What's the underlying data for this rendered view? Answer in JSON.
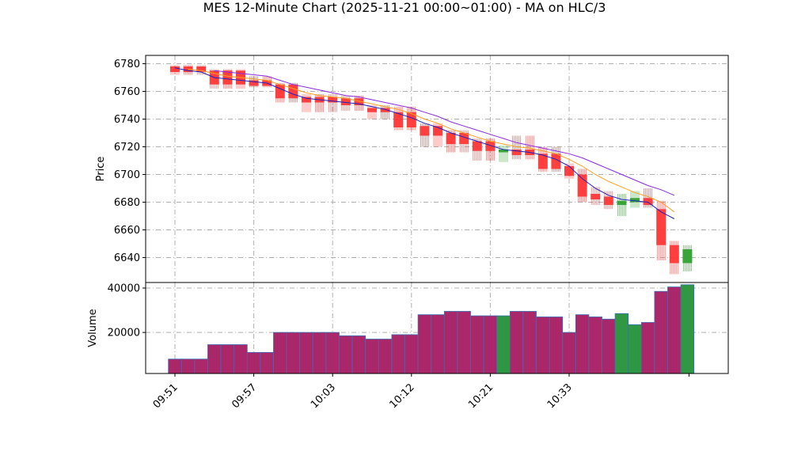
{
  "chart_data": {
    "type": "candlestick",
    "title": "MES 12-Minute Chart (2025-11-21 00:00~01:00) - MA on HLC/3",
    "price_panel": {
      "ylabel": "Price",
      "yticks": [
        6640,
        6660,
        6680,
        6700,
        6720,
        6740,
        6760,
        6780
      ],
      "ylim": [
        6622,
        6786
      ],
      "grid": true
    },
    "volume_panel": {
      "ylabel": "Volume",
      "yticks": [
        20000,
        40000
      ],
      "ylim": [
        1500,
        42500
      ],
      "grid": true
    },
    "x_tick_labels": [
      "09:51",
      "09:57",
      "10:03",
      "10:12",
      "10:21",
      "10:33"
    ],
    "x_tick_bar_index": [
      0,
      6,
      12,
      18,
      24,
      30
    ],
    "colors": {
      "up": "#2ca02c",
      "down": "#ff3333",
      "ma_fast": "#1f1fbf",
      "ma_mid": "#ff9f1c",
      "ma_slow": "#8a2be2",
      "volume_edge": "#3c6fb4",
      "grid": "#b0b0b0"
    },
    "bars": [
      {
        "o": 6778,
        "h": 6779,
        "l": 6772,
        "c": 6774,
        "v": 8000
      },
      {
        "o": 6778,
        "h": 6779,
        "l": 6772,
        "c": 6774,
        "v": 8000
      },
      {
        "o": 6778,
        "h": 6779,
        "l": 6772,
        "c": 6774,
        "v": 8000
      },
      {
        "o": 6775,
        "h": 6776,
        "l": 6762,
        "c": 6765,
        "v": 14500
      },
      {
        "o": 6775,
        "h": 6776,
        "l": 6762,
        "c": 6765,
        "v": 14500
      },
      {
        "o": 6775,
        "h": 6776,
        "l": 6762,
        "c": 6765,
        "v": 14500
      },
      {
        "o": 6768,
        "h": 6771,
        "l": 6763,
        "c": 6764,
        "v": 11000
      },
      {
        "o": 6768,
        "h": 6771,
        "l": 6763,
        "c": 6764,
        "v": 11000
      },
      {
        "o": 6765,
        "h": 6766,
        "l": 6752,
        "c": 6755,
        "v": 20000
      },
      {
        "o": 6765,
        "h": 6766,
        "l": 6752,
        "c": 6755,
        "v": 20000
      },
      {
        "o": 6756,
        "h": 6758,
        "l": 6745,
        "c": 6752,
        "v": 20000
      },
      {
        "o": 6756,
        "h": 6758,
        "l": 6745,
        "c": 6752,
        "v": 20000
      },
      {
        "o": 6756,
        "h": 6758,
        "l": 6745,
        "c": 6752,
        "v": 20000
      },
      {
        "o": 6755,
        "h": 6757,
        "l": 6746,
        "c": 6750,
        "v": 18500
      },
      {
        "o": 6755,
        "h": 6757,
        "l": 6746,
        "c": 6750,
        "v": 18500
      },
      {
        "o": 6748,
        "h": 6750,
        "l": 6740,
        "c": 6745,
        "v": 17000
      },
      {
        "o": 6748,
        "h": 6750,
        "l": 6740,
        "c": 6745,
        "v": 17000
      },
      {
        "o": 6745,
        "h": 6749,
        "l": 6732,
        "c": 6734,
        "v": 19000
      },
      {
        "o": 6745,
        "h": 6749,
        "l": 6732,
        "c": 6734,
        "v": 19000
      },
      {
        "o": 6735,
        "h": 6737,
        "l": 6720,
        "c": 6728,
        "v": 28000
      },
      {
        "o": 6735,
        "h": 6737,
        "l": 6720,
        "c": 6728,
        "v": 28000
      },
      {
        "o": 6730,
        "h": 6732,
        "l": 6716,
        "c": 6722,
        "v": 29500
      },
      {
        "o": 6730,
        "h": 6732,
        "l": 6716,
        "c": 6722,
        "v": 29500
      },
      {
        "o": 6724,
        "h": 6726,
        "l": 6710,
        "c": 6717,
        "v": 27500
      },
      {
        "o": 6724,
        "h": 6726,
        "l": 6710,
        "c": 6717,
        "v": 27500
      },
      {
        "o": 6716,
        "h": 6721,
        "l": 6709,
        "c": 6718,
        "v": 27500
      },
      {
        "o": 6718,
        "h": 6728,
        "l": 6711,
        "c": 6714,
        "v": 29500
      },
      {
        "o": 6718,
        "h": 6728,
        "l": 6711,
        "c": 6714,
        "v": 29500
      },
      {
        "o": 6715,
        "h": 6720,
        "l": 6702,
        "c": 6704,
        "v": 27000
      },
      {
        "o": 6715,
        "h": 6720,
        "l": 6702,
        "c": 6704,
        "v": 27000
      },
      {
        "o": 6706,
        "h": 6708,
        "l": 6697,
        "c": 6699,
        "v": 20000
      },
      {
        "o": 6700,
        "h": 6704,
        "l": 6680,
        "c": 6684,
        "v": 28000
      },
      {
        "o": 6686,
        "h": 6691,
        "l": 6678,
        "c": 6682,
        "v": 27000
      },
      {
        "o": 6684,
        "h": 6688,
        "l": 6675,
        "c": 6678,
        "v": 26000
      },
      {
        "o": 6678,
        "h": 6686,
        "l": 6670,
        "c": 6681,
        "v": 28500
      },
      {
        "o": 6680,
        "h": 6688,
        "l": 6676,
        "c": 6683,
        "v": 23500
      },
      {
        "o": 6683,
        "h": 6690,
        "l": 6676,
        "c": 6678,
        "v": 24500
      },
      {
        "o": 6675,
        "h": 6681,
        "l": 6638,
        "c": 6649,
        "v": 38500
      },
      {
        "o": 6649,
        "h": 6652,
        "l": 6628,
        "c": 6636,
        "v": 40500
      },
      {
        "o": 6636,
        "h": 6649,
        "l": 6630,
        "c": 6646,
        "v": 41500
      }
    ],
    "ma_fast": [
      6777,
      6775,
      6774,
      6770,
      6769,
      6768,
      6767,
      6766,
      6762,
      6758,
      6755,
      6754,
      6753,
      6752,
      6751,
      6749,
      6747,
      6744,
      6741,
      6737,
      6734,
      6730,
      6727,
      6724,
      6721,
      6718,
      6717,
      6716,
      6714,
      6711,
      6706,
      6697,
      6690,
      6685,
      6682,
      6681,
      6680,
      6673,
      null,
      null
    ],
    "ma_mid": [
      null,
      6776,
      6775,
      6773,
      6771,
      6770,
      6769,
      6768,
      6765,
      6762,
      6759,
      6757,
      6756,
      6755,
      6753,
      6751,
      6749,
      6747,
      6744,
      6740,
      6737,
      6733,
      6730,
      6727,
      6724,
      6722,
      6720,
      6719,
      6717,
      6715,
      6711,
      6706,
      6700,
      6695,
      6691,
      6687,
      6684,
      6680,
      null,
      null
    ],
    "ma_slow": [
      null,
      null,
      null,
      6775,
      6774,
      6773,
      6772,
      6771,
      6768,
      6765,
      6763,
      6761,
      6759,
      6757,
      6756,
      6754,
      6752,
      6750,
      6748,
      6745,
      6742,
      6738,
      6735,
      6732,
      6729,
      6726,
      6723,
      6721,
      6719,
      6717,
      6715,
      6712,
      6708,
      6704,
      6700,
      6696,
      6692,
      6689,
      null,
      null
    ]
  }
}
